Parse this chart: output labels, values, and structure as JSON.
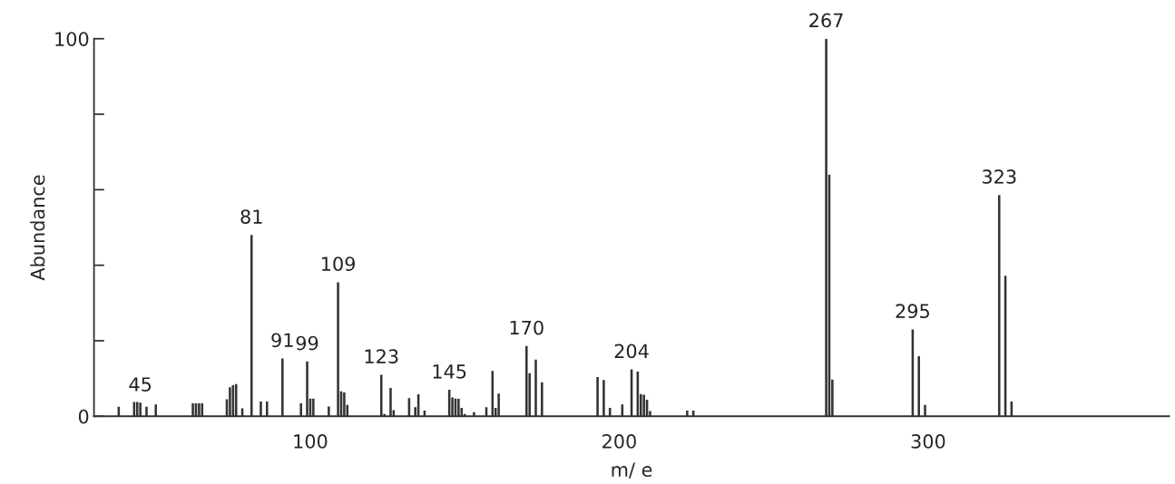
{
  "chart_data": {
    "type": "bar",
    "xlabel": "m/ e",
    "ylabel": "Abundance",
    "color": "#333333",
    "x": [
      38,
      43,
      44,
      45,
      47,
      50,
      62,
      63,
      64,
      65,
      73,
      74,
      75,
      76,
      78,
      81,
      84,
      86,
      91,
      97,
      99,
      100,
      101,
      106,
      109,
      110,
      111,
      112,
      123,
      124,
      126,
      127,
      132,
      134,
      135,
      137,
      145,
      146,
      147,
      148,
      149,
      150,
      153,
      157,
      159,
      160,
      161,
      170,
      171,
      173,
      175,
      193,
      195,
      197,
      201,
      204,
      206,
      207,
      208,
      209,
      210,
      222,
      224,
      267,
      268,
      269,
      295,
      297,
      299,
      323,
      325,
      327
    ],
    "values": [
      2.5,
      3.8,
      3.8,
      3.6,
      2.5,
      3.1,
      3.4,
      3.4,
      3.4,
      3.4,
      4.5,
      7.7,
      8.2,
      8.5,
      2.1,
      48,
      3.9,
      3.9,
      15.3,
      3.4,
      14.5,
      4.7,
      4.7,
      2.6,
      35.5,
      6.6,
      6.3,
      3.0,
      11,
      0.6,
      7.5,
      1.6,
      4.8,
      2.4,
      5.8,
      1.5,
      7.0,
      5.0,
      4.7,
      4.6,
      2.2,
      0.6,
      1.1,
      2.4,
      12.0,
      2.2,
      6.0,
      18.6,
      11.4,
      15.0,
      9.0,
      10.4,
      9.6,
      2.2,
      3.1,
      12.4,
      11.8,
      5.9,
      5.7,
      4.4,
      1.4,
      1.5,
      1.5,
      100,
      64,
      9.7,
      23,
      15.9,
      3.0,
      58.6,
      37.2,
      3.9
    ],
    "xlim": [
      30,
      378
    ],
    "ylim": [
      0,
      100
    ],
    "xticks": [
      100,
      200,
      300
    ],
    "yticks": [
      0,
      {
        "value": 20,
        "label": null
      },
      {
        "value": 40,
        "label": null
      },
      {
        "value": 60,
        "label": null
      },
      {
        "value": 80,
        "label": null
      },
      100
    ],
    "grid": false,
    "legend": false,
    "annotations": [
      {
        "text": "45",
        "x": 45,
        "y": 3.6
      },
      {
        "text": "81",
        "x": 81,
        "y": 48
      },
      {
        "text": "91",
        "x": 91,
        "y": 15.3
      },
      {
        "text": "99",
        "x": 99,
        "y": 14.5
      },
      {
        "text": "109",
        "x": 109,
        "y": 35.5
      },
      {
        "text": "123",
        "x": 123,
        "y": 11
      },
      {
        "text": "145",
        "x": 145,
        "y": 7.0
      },
      {
        "text": "170",
        "x": 170,
        "y": 18.6
      },
      {
        "text": "204",
        "x": 204,
        "y": 12.4
      },
      {
        "text": "267",
        "x": 267,
        "y": 100
      },
      {
        "text": "295",
        "x": 295,
        "y": 23
      },
      {
        "text": "323",
        "x": 323,
        "y": 58.6
      }
    ]
  }
}
